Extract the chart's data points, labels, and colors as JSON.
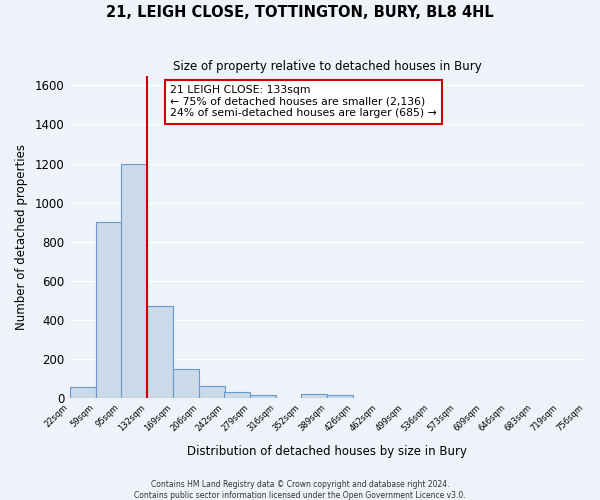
{
  "title": "21, LEIGH CLOSE, TOTTINGTON, BURY, BL8 4HL",
  "subtitle": "Size of property relative to detached houses in Bury",
  "xlabel": "Distribution of detached houses by size in Bury",
  "ylabel": "Number of detached properties",
  "bar_color": "#ccd9e8",
  "bar_edge_color": "#6699cc",
  "background_color": "#eef2f9",
  "grid_color": "#ffffff",
  "bin_edges": [
    22,
    59,
    95,
    132,
    169,
    206,
    242,
    279,
    316,
    352,
    389,
    426,
    462,
    499,
    536,
    573,
    609,
    646,
    683,
    719,
    756
  ],
  "bin_labels": [
    "22sqm",
    "59sqm",
    "95sqm",
    "132sqm",
    "169sqm",
    "206sqm",
    "242sqm",
    "279sqm",
    "316sqm",
    "352sqm",
    "389sqm",
    "426sqm",
    "462sqm",
    "499sqm",
    "536sqm",
    "573sqm",
    "609sqm",
    "646sqm",
    "683sqm",
    "719sqm",
    "756sqm"
  ],
  "bar_heights": [
    55,
    900,
    1200,
    470,
    150,
    60,
    30,
    18,
    0,
    20,
    15,
    0,
    0,
    0,
    0,
    0,
    0,
    0,
    0,
    0
  ],
  "vline_x": 132,
  "vline_color": "#cc0000",
  "annotation_title": "21 LEIGH CLOSE: 133sqm",
  "annotation_line1": "← 75% of detached houses are smaller (2,136)",
  "annotation_line2": "24% of semi-detached houses are larger (685) →",
  "annotation_box_facecolor": "#ffffff",
  "annotation_box_edgecolor": "#cc0000",
  "ylim": [
    0,
    1650
  ],
  "yticks": [
    0,
    200,
    400,
    600,
    800,
    1000,
    1200,
    1400,
    1600
  ],
  "footer1": "Contains HM Land Registry data © Crown copyright and database right 2024.",
  "footer2": "Contains public sector information licensed under the Open Government Licence v3.0."
}
